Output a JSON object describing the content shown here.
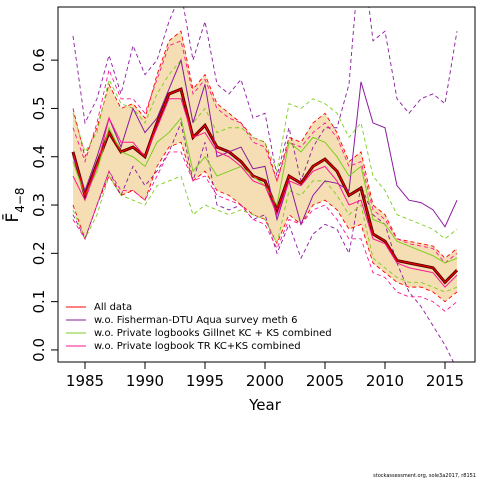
{
  "chart_data": {
    "type": "line",
    "xlabel": "Year",
    "ylabel": "F̄",
    "ylabel_sub": "4−8",
    "footer": "stockassessment.org, sole3a2017, r8151",
    "legend": "bottom-left",
    "band_color": "#f5deb3",
    "estimate_color": "#5a0000",
    "x": [
      1984,
      1985,
      1986,
      1987,
      1988,
      1989,
      1990,
      1991,
      1992,
      1993,
      1994,
      1995,
      1996,
      1997,
      1998,
      1999,
      2000,
      2001,
      2002,
      2003,
      2004,
      2005,
      2006,
      2007,
      2008,
      2009,
      2010,
      2011,
      2012,
      2013,
      2014,
      2015,
      2016
    ],
    "xlim": [
      1982.75,
      2017.5
    ],
    "xticks": [
      1985,
      1990,
      1995,
      2000,
      2005,
      2010,
      2015
    ],
    "ylim": [
      -0.025,
      0.71
    ],
    "yticks": [
      0.0,
      0.1,
      0.2,
      0.3,
      0.4,
      0.5,
      0.6
    ],
    "series": [
      {
        "name": "All data",
        "color": "#ff0000",
        "values": [
          0.41,
          0.32,
          0.385,
          0.45,
          0.41,
          0.42,
          0.4,
          0.47,
          0.53,
          0.54,
          0.44,
          0.465,
          0.42,
          0.41,
          0.39,
          0.36,
          0.35,
          0.29,
          0.36,
          0.345,
          0.38,
          0.395,
          0.37,
          0.32,
          0.335,
          0.24,
          0.225,
          0.185,
          0.18,
          0.175,
          0.17,
          0.14,
          0.165
        ],
        "upper": [
          0.5,
          0.4,
          0.46,
          0.55,
          0.5,
          0.51,
          0.48,
          0.57,
          0.64,
          0.66,
          0.54,
          0.57,
          0.51,
          0.49,
          0.47,
          0.44,
          0.43,
          0.35,
          0.44,
          0.43,
          0.47,
          0.49,
          0.45,
          0.39,
          0.41,
          0.3,
          0.28,
          0.23,
          0.225,
          0.22,
          0.215,
          0.19,
          0.21
        ],
        "lower": [
          0.3,
          0.23,
          0.3,
          0.36,
          0.32,
          0.33,
          0.31,
          0.38,
          0.42,
          0.43,
          0.35,
          0.37,
          0.33,
          0.32,
          0.3,
          0.28,
          0.27,
          0.22,
          0.28,
          0.26,
          0.3,
          0.31,
          0.29,
          0.25,
          0.26,
          0.18,
          0.16,
          0.14,
          0.13,
          0.13,
          0.12,
          0.1,
          0.12
        ]
      },
      {
        "name": "w.o. Fisherman-DTU Aqua survey meth 6",
        "color": "#8b1a9e",
        "values": [
          0.4,
          0.33,
          0.4,
          0.48,
          0.42,
          0.5,
          0.45,
          0.48,
          0.54,
          0.6,
          0.47,
          0.55,
          0.4,
          0.41,
          0.42,
          0.375,
          0.38,
          0.27,
          0.35,
          0.26,
          0.32,
          0.35,
          0.345,
          0.33,
          0.555,
          0.47,
          0.46,
          0.34,
          0.31,
          0.305,
          0.29,
          0.255,
          0.31
        ],
        "upper": [
          0.65,
          0.47,
          0.52,
          0.61,
          0.53,
          0.63,
          0.57,
          0.6,
          0.68,
          0.74,
          0.6,
          0.68,
          0.55,
          0.53,
          0.56,
          0.48,
          0.49,
          0.36,
          0.46,
          0.35,
          0.42,
          0.46,
          0.46,
          0.55,
          0.85,
          0.64,
          0.66,
          0.52,
          0.49,
          0.52,
          0.53,
          0.51,
          0.66
        ],
        "lower": [
          0.28,
          0.23,
          0.3,
          0.37,
          0.32,
          0.38,
          0.34,
          0.37,
          0.41,
          0.47,
          0.35,
          0.43,
          0.3,
          0.29,
          0.3,
          0.27,
          0.28,
          0.2,
          0.26,
          0.19,
          0.24,
          0.26,
          0.25,
          0.2,
          0.34,
          0.28,
          0.26,
          0.18,
          0.12,
          0.09,
          0.05,
          0.01,
          -0.04
        ]
      },
      {
        "name": "w.o. Private logbooks Gillnet KC + KS combined",
        "color": "#7ccd20",
        "values": [
          0.39,
          0.32,
          0.37,
          0.46,
          0.41,
          0.4,
          0.38,
          0.43,
          0.45,
          0.48,
          0.37,
          0.4,
          0.36,
          0.37,
          0.38,
          0.36,
          0.34,
          0.3,
          0.43,
          0.41,
          0.44,
          0.43,
          0.4,
          0.36,
          0.38,
          0.27,
          0.26,
          0.225,
          0.215,
          0.205,
          0.195,
          0.18,
          0.19
        ],
        "upper": [
          0.49,
          0.41,
          0.45,
          0.56,
          0.51,
          0.5,
          0.47,
          0.53,
          0.57,
          0.6,
          0.47,
          0.5,
          0.45,
          0.46,
          0.46,
          0.44,
          0.43,
          0.37,
          0.51,
          0.5,
          0.52,
          0.51,
          0.49,
          0.44,
          0.47,
          0.36,
          0.33,
          0.28,
          0.27,
          0.26,
          0.25,
          0.23,
          0.25
        ],
        "lower": [
          0.29,
          0.23,
          0.28,
          0.36,
          0.32,
          0.31,
          0.3,
          0.34,
          0.35,
          0.36,
          0.28,
          0.3,
          0.29,
          0.28,
          0.29,
          0.28,
          0.27,
          0.22,
          0.33,
          0.32,
          0.35,
          0.35,
          0.32,
          0.28,
          0.3,
          0.19,
          0.17,
          0.15,
          0.14,
          0.14,
          0.13,
          0.12,
          0.13
        ]
      },
      {
        "name": "w.o. Private logbook TR KC+KS combined",
        "color": "#ff1493",
        "values": [
          0.36,
          0.31,
          0.38,
          0.48,
          0.43,
          0.43,
          0.4,
          0.46,
          0.52,
          0.52,
          0.44,
          0.45,
          0.41,
          0.4,
          0.38,
          0.35,
          0.34,
          0.28,
          0.35,
          0.34,
          0.37,
          0.38,
          0.35,
          0.3,
          0.31,
          0.23,
          0.22,
          0.18,
          0.17,
          0.165,
          0.16,
          0.13,
          0.155
        ],
        "upper": [
          0.46,
          0.39,
          0.47,
          0.58,
          0.52,
          0.52,
          0.49,
          0.56,
          0.63,
          0.64,
          0.53,
          0.56,
          0.5,
          0.48,
          0.47,
          0.43,
          0.42,
          0.35,
          0.43,
          0.42,
          0.45,
          0.47,
          0.44,
          0.38,
          0.39,
          0.29,
          0.27,
          0.23,
          0.22,
          0.215,
          0.21,
          0.18,
          0.2
        ],
        "lower": [
          0.27,
          0.23,
          0.3,
          0.37,
          0.33,
          0.33,
          0.31,
          0.36,
          0.41,
          0.41,
          0.35,
          0.36,
          0.32,
          0.31,
          0.3,
          0.27,
          0.26,
          0.21,
          0.27,
          0.26,
          0.29,
          0.3,
          0.27,
          0.23,
          0.23,
          0.16,
          0.15,
          0.12,
          0.11,
          0.11,
          0.1,
          0.08,
          0.1
        ]
      }
    ]
  }
}
